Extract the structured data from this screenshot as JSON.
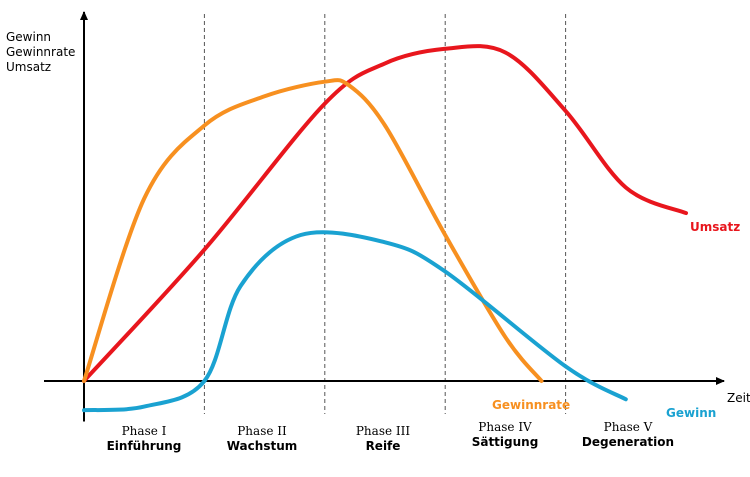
{
  "chart_data": {
    "type": "line",
    "title": "",
    "ylabel_lines": [
      "Gewinn",
      "Gewinnrate",
      "Umsatz"
    ],
    "xlabel": "Zeit",
    "phases": [
      {
        "name": "Phase I",
        "label": "Einführung"
      },
      {
        "name": "Phase II",
        "label": "Wachstum"
      },
      {
        "name": "Phase III",
        "label": "Reife"
      },
      {
        "name": "Phase IV",
        "label": "Sättigung"
      },
      {
        "name": "Phase V",
        "label": "Degeneration"
      }
    ],
    "phase_boundaries": [
      1,
      2,
      3,
      4
    ],
    "xlim": [
      0,
      5.3
    ],
    "ylim": [
      -0.1,
      1.0
    ],
    "series": [
      {
        "name": "Umsatz",
        "color": "#e8161d",
        "x": [
          0,
          1.0,
          2.0,
          2.5,
          3.0,
          3.5,
          4.0,
          4.5,
          5.0
        ],
        "y": [
          0,
          0.36,
          0.76,
          0.87,
          0.91,
          0.9,
          0.74,
          0.53,
          0.46
        ]
      },
      {
        "name": "Gewinnrate",
        "color": "#f79020",
        "x": [
          0,
          0.5,
          1.0,
          1.5,
          2.0,
          2.2,
          2.5,
          3.0,
          3.5,
          3.8
        ],
        "y": [
          0,
          0.5,
          0.7,
          0.78,
          0.82,
          0.81,
          0.7,
          0.4,
          0.12,
          0
        ]
      },
      {
        "name": "Gewinn",
        "color": "#1aa2d1",
        "x": [
          0,
          0.5,
          1.0,
          1.3,
          1.8,
          2.5,
          3.0,
          4.0,
          4.5
        ],
        "y": [
          -0.08,
          -0.07,
          0,
          0.26,
          0.4,
          0.38,
          0.3,
          0.04,
          -0.05
        ]
      }
    ]
  }
}
